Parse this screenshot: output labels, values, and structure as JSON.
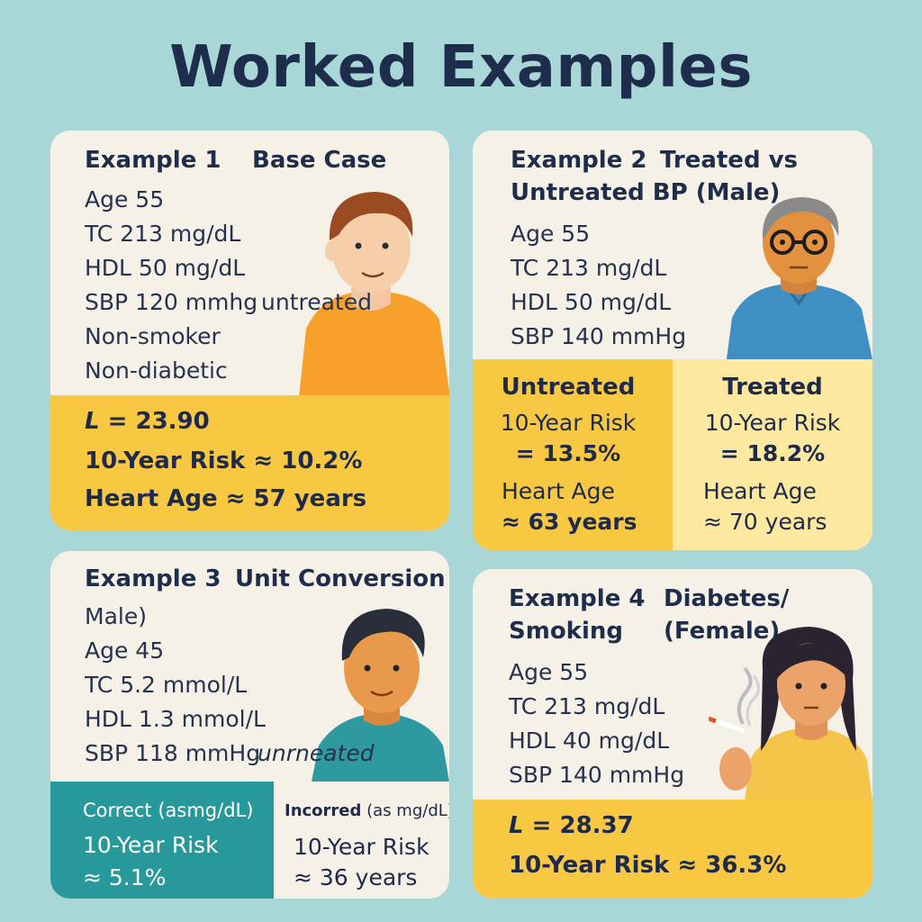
{
  "title": "Worked Examples",
  "ex1": {
    "label": "Example 1",
    "subtitle": "Base Case",
    "lines": [
      "Age 55",
      "TC 213 mg/dL",
      "HDL 50 mg/dL",
      "SBP 120 mmhg",
      "Non-smoker",
      "Non-diabetic"
    ],
    "sbp_note": "untreated",
    "result": {
      "l_sym": "L",
      "l_val": "= 23.90",
      "risk": "10-Year Risk ≈ 10.2%",
      "heart_age": "Heart Age ≈ 57 years"
    }
  },
  "ex2": {
    "label": "Example 2",
    "subtitle_a": "Treated vs",
    "subtitle_b": "Untreated BP (Male)",
    "lines": [
      "Age 55",
      "TC 213 mg/dL",
      "HDL 50 mg/dL",
      "SBP 140 mmHg"
    ],
    "untreated": {
      "head": "Untreated",
      "risk_label": "10-Year Risk",
      "risk_val": "= 13.5%",
      "age_label": "Heart Age",
      "age_val": "≈ 63 years"
    },
    "treated": {
      "head": "Treated",
      "risk_label": "10-Year Risk",
      "risk_val": "= 18.2%",
      "age_label": "Heart Age",
      "age_val": "≈ 70 years"
    }
  },
  "ex3": {
    "label": "Example 3",
    "subtitle": "Unit Conversion",
    "lines": [
      "Male)",
      "Age 45",
      "TC 5.2 mmol/L",
      "HDL 1.3 mmol/L",
      "SBP 118 mmHg"
    ],
    "sbp_note": "unrneated",
    "correct": {
      "head": "Correct (asmg/dL)",
      "risk_label": "10-Year Risk",
      "risk_val": "≈ 5.1%"
    },
    "incorrect": {
      "head_bold": "Incorred",
      "head_rest": "(as mg/dL)",
      "risk_label": "10-Year Risk",
      "risk_val": "≈ 36 years"
    }
  },
  "ex4": {
    "label": "Example 4",
    "label_b": "Smoking",
    "subtitle_a": "Diabetes/",
    "subtitle_b": "(Female)",
    "lines": [
      "Age 55",
      "TC 213 mg/dL",
      "HDL 40 mg/dL",
      "SBP 140 mmHg"
    ],
    "result": {
      "l_sym": "L",
      "l_val": "= 28.37",
      "risk": "10-Year Risk ≈ 36.3%"
    }
  },
  "colors": {
    "background": "#a9d7d8",
    "card": "#f5f1e6",
    "yellow": "#f8c843",
    "pale_yellow": "#fde8a0",
    "teal": "#27999b",
    "navy": "#1f2d4d"
  }
}
